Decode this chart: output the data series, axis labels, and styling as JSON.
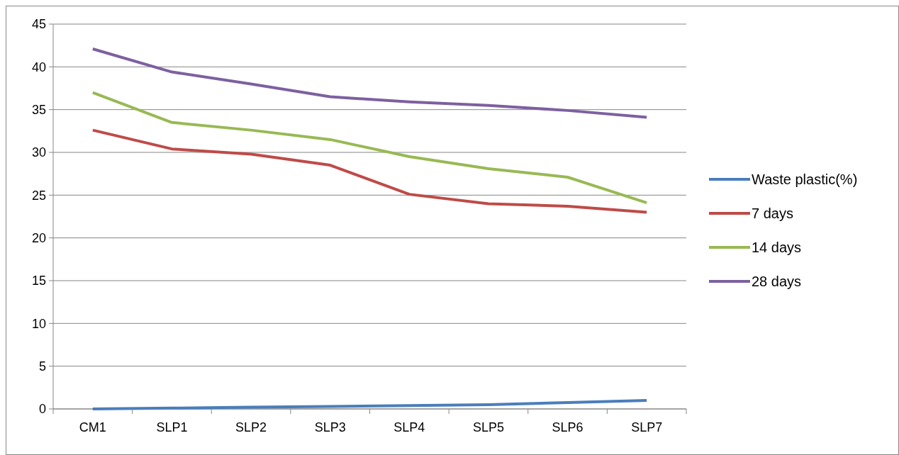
{
  "chart_data": {
    "type": "line",
    "categories": [
      "CM1",
      "SLP1",
      "SLP2",
      "SLP3",
      "SLP4",
      "SLP5",
      "SLP6",
      "SLP7"
    ],
    "series": [
      {
        "name": "Waste plastic(%)",
        "color": "#4a7ebb",
        "values": [
          0,
          0.1,
          0.2,
          0.3,
          0.4,
          0.5,
          0.75,
          1
        ]
      },
      {
        "name": "7 days",
        "color": "#be4b48",
        "values": [
          32.6,
          30.4,
          29.8,
          28.5,
          25.1,
          24.0,
          23.7,
          23.0
        ]
      },
      {
        "name": "14 days",
        "color": "#98b954",
        "values": [
          37.0,
          33.5,
          32.6,
          31.5,
          29.5,
          28.1,
          27.1,
          24.1
        ]
      },
      {
        "name": "28 days",
        "color": "#7d60a0",
        "values": [
          42.1,
          39.4,
          38.0,
          36.5,
          35.9,
          35.5,
          34.9,
          34.1
        ]
      }
    ],
    "ylim": [
      0,
      45
    ],
    "yticks": [
      0,
      5,
      10,
      15,
      20,
      25,
      30,
      35,
      40,
      45
    ],
    "grid": "y",
    "legend": "right",
    "marker": "none",
    "line_style": "solid"
  }
}
